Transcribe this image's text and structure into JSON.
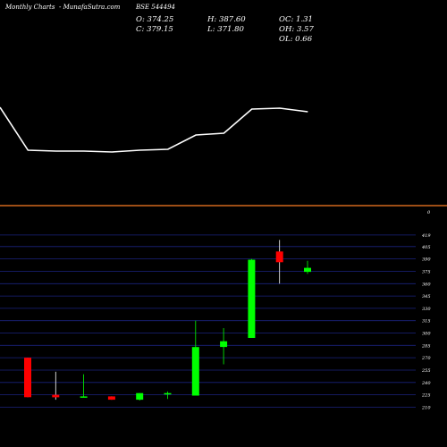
{
  "header": {
    "left_title": "Monthly Charts",
    "source": "- MunafaSutra.com",
    "symbol": "BSE 544494"
  },
  "ohlc": {
    "open": "O: 374.25",
    "high": "H: 387.60",
    "oc": "OC: 1.31",
    "close": "C: 379.15",
    "low": "L: 371.80",
    "oh": "OH: 3.57",
    "ol": "OL: 0.66"
  },
  "colors": {
    "background": "#000000",
    "bull": "#00ff00",
    "bear": "#ff0000",
    "divider": "#d2691e",
    "grid": "#1a237e",
    "line": "#ffffff"
  },
  "chart_data": [
    {
      "type": "line",
      "panel": "upper",
      "y": [
        120,
        168,
        169,
        169,
        170,
        168,
        167,
        151,
        149,
        122,
        121,
        125
      ]
    },
    {
      "type": "candlestick",
      "panel": "lower",
      "volume_label": "0",
      "ylim": [
        205,
        420
      ],
      "y_ticks": [
        210,
        225,
        240,
        255,
        270,
        285,
        300,
        315,
        330,
        345,
        360,
        375,
        390,
        405,
        419
      ],
      "candles": [
        {
          "open": 270,
          "high": 270,
          "low": 222,
          "close": 222
        },
        {
          "open": 225,
          "high": 253,
          "low": 219,
          "close": 222
        },
        {
          "open": 222,
          "high": 250,
          "low": 222,
          "close": 223
        },
        {
          "open": 223,
          "high": 223,
          "low": 219,
          "close": 219
        },
        {
          "open": 219,
          "high": 227,
          "low": 218,
          "close": 227
        },
        {
          "open": 226,
          "high": 229,
          "low": 220,
          "close": 227
        },
        {
          "open": 224,
          "high": 315,
          "low": 224,
          "close": 283
        },
        {
          "open": 283,
          "high": 306,
          "low": 262,
          "close": 290
        },
        {
          "open": 294,
          "high": 390,
          "low": 294,
          "close": 389
        },
        {
          "open": 399,
          "high": 413,
          "low": 360,
          "close": 386
        },
        {
          "open": 374.25,
          "high": 387.6,
          "low": 371.8,
          "close": 379.15
        }
      ]
    }
  ]
}
